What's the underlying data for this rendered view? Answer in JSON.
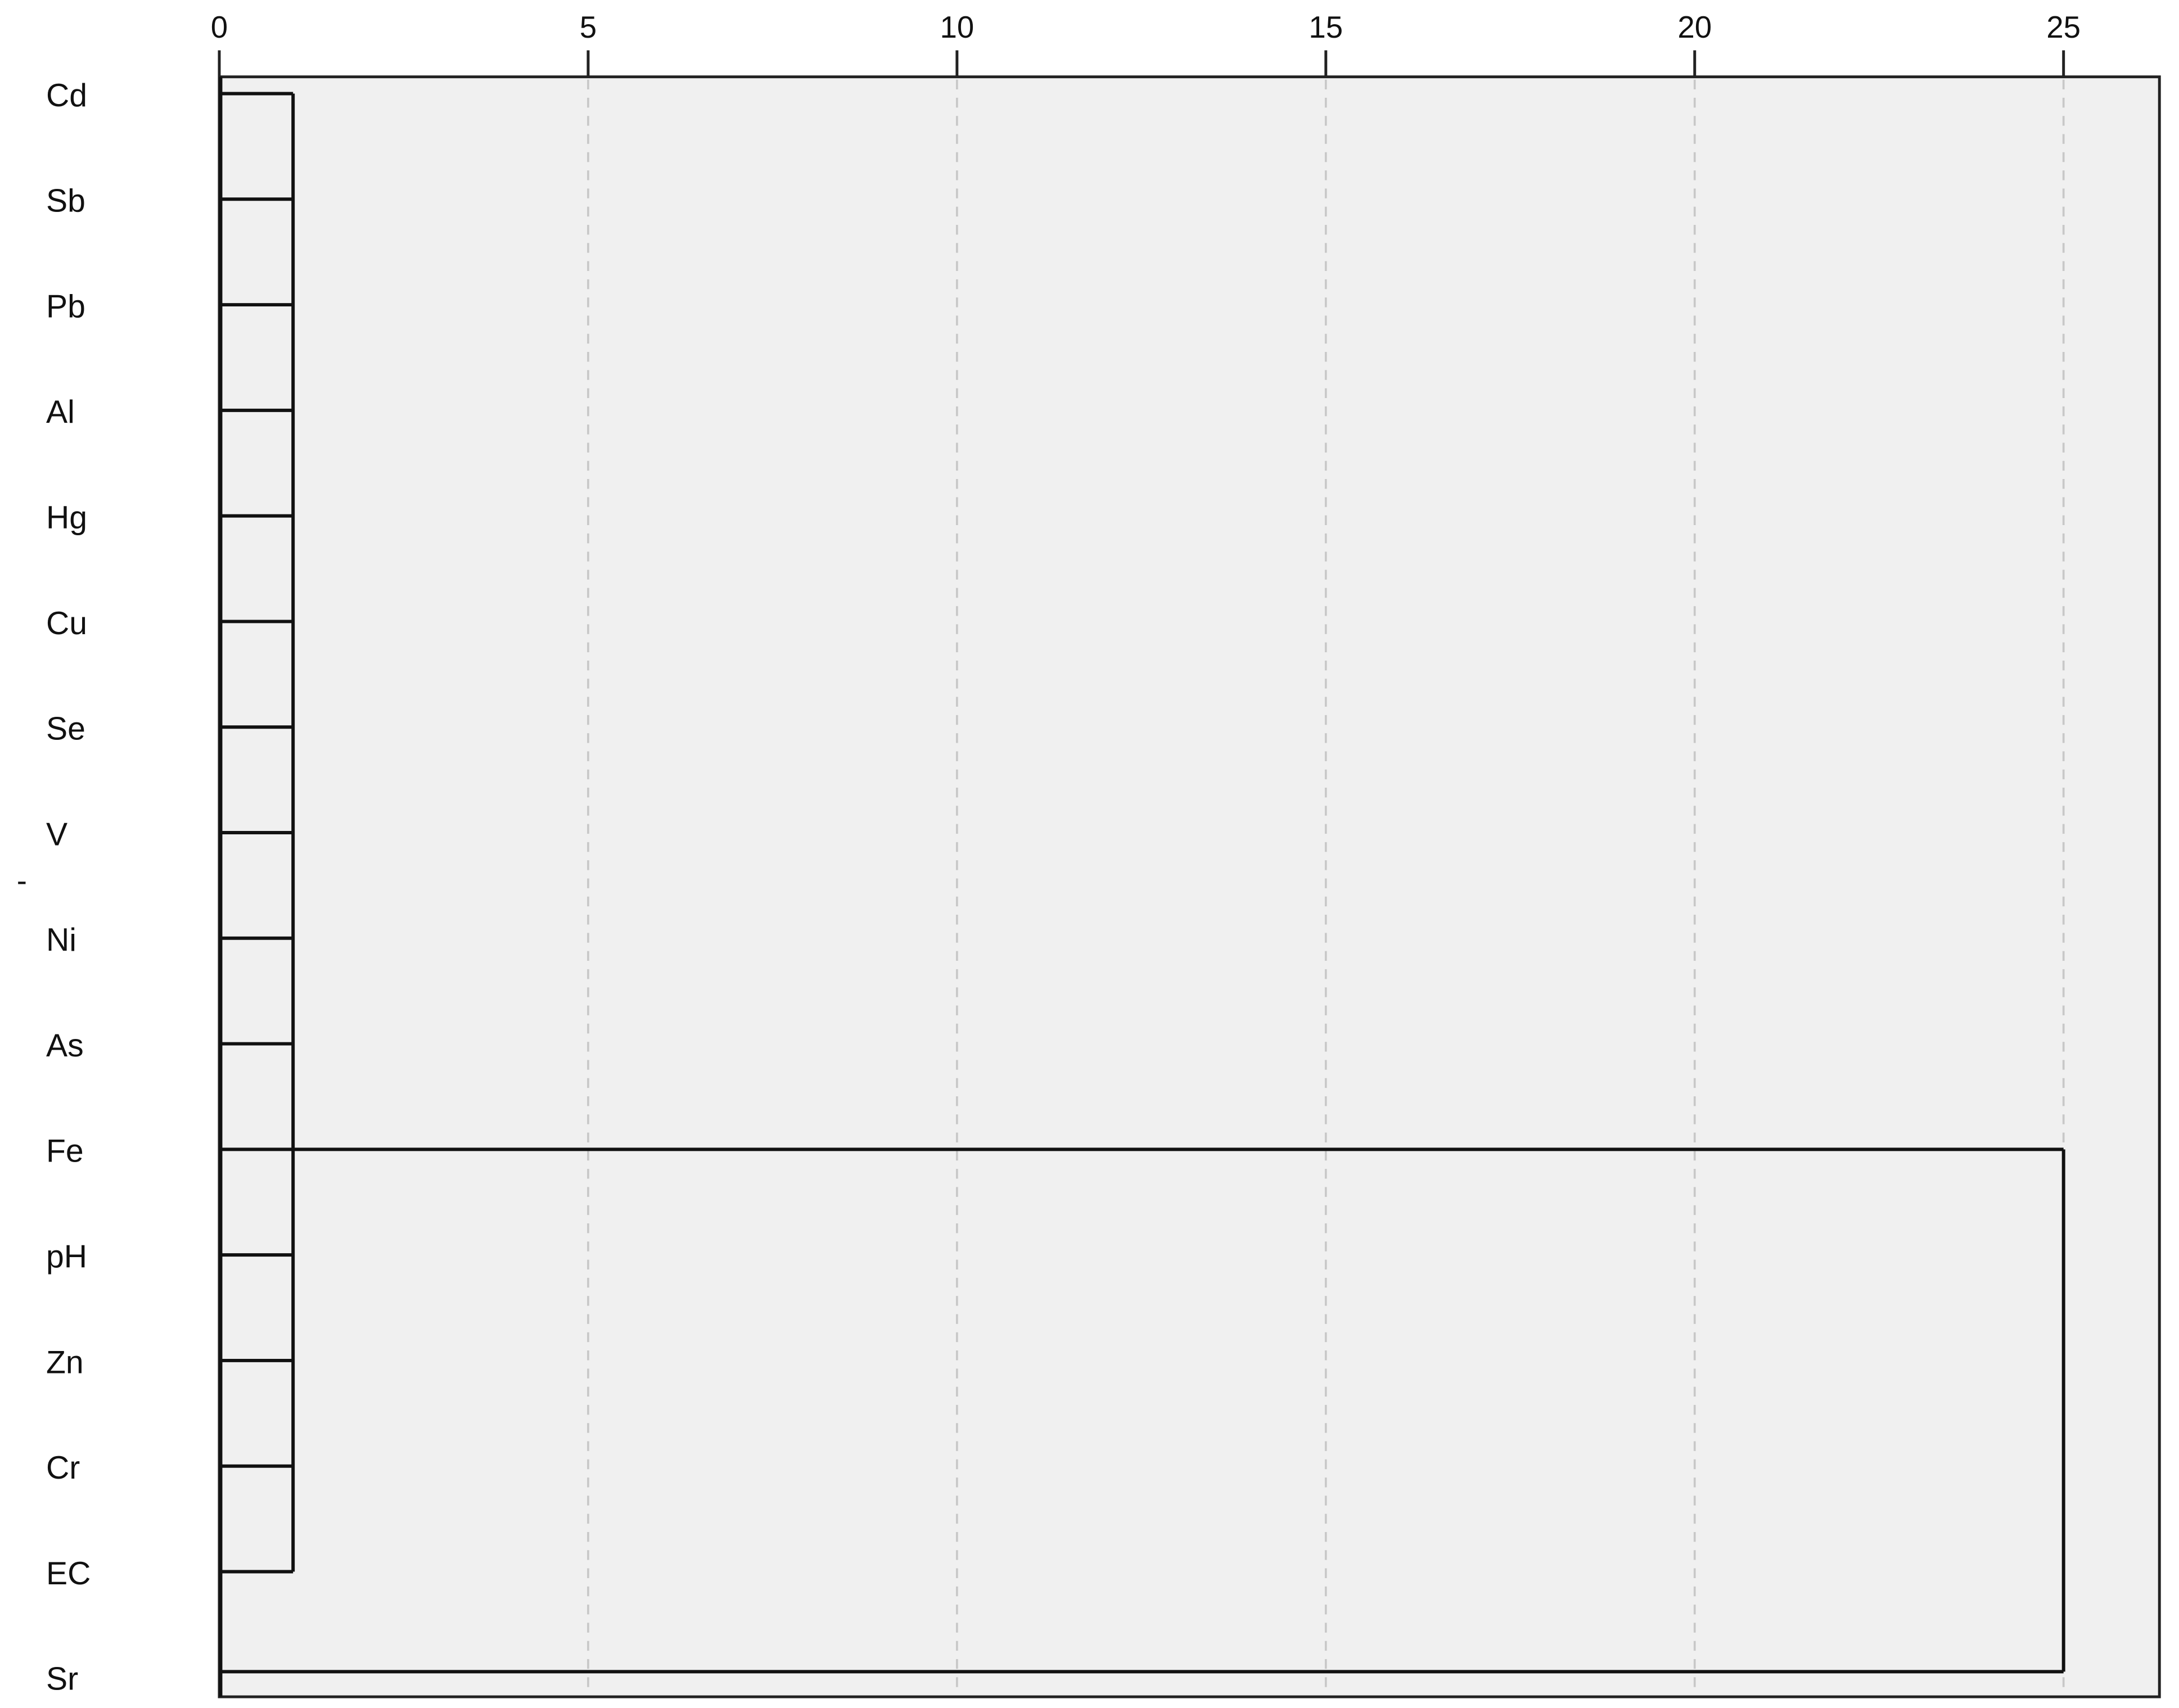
{
  "chart_data": {
    "type": "dendrogram",
    "title": "",
    "xlabel": "",
    "ylabel": "",
    "orientation": "horizontal",
    "xlim": [
      0,
      26.3
    ],
    "x_ticks": [
      0,
      5,
      10,
      15,
      20,
      25
    ],
    "grid": "vertical dashed at ticks",
    "plot_background": "#f0f0f0",
    "line_color": "#111111",
    "grid_color": "#c8c8c8",
    "leaves": [
      "Cd",
      "Sb",
      "Pb",
      "Al",
      "Hg",
      "Cu",
      "Se",
      "V",
      "Ni",
      "As",
      "Fe",
      "pH",
      "Zn",
      "Cr",
      "EC",
      "Sr"
    ],
    "merges": [
      {
        "members": [
          "Cd",
          "Sb",
          "Pb",
          "Al",
          "Hg",
          "Cu",
          "Se",
          "V",
          "Ni",
          "As",
          "Fe",
          "pH",
          "Zn",
          "Cr",
          "EC"
        ],
        "distance": 1,
        "link_row": "Fe"
      },
      {
        "members": [
          "cluster-1",
          "Sr"
        ],
        "distance": 25
      }
    ],
    "stray_mark": "-"
  }
}
